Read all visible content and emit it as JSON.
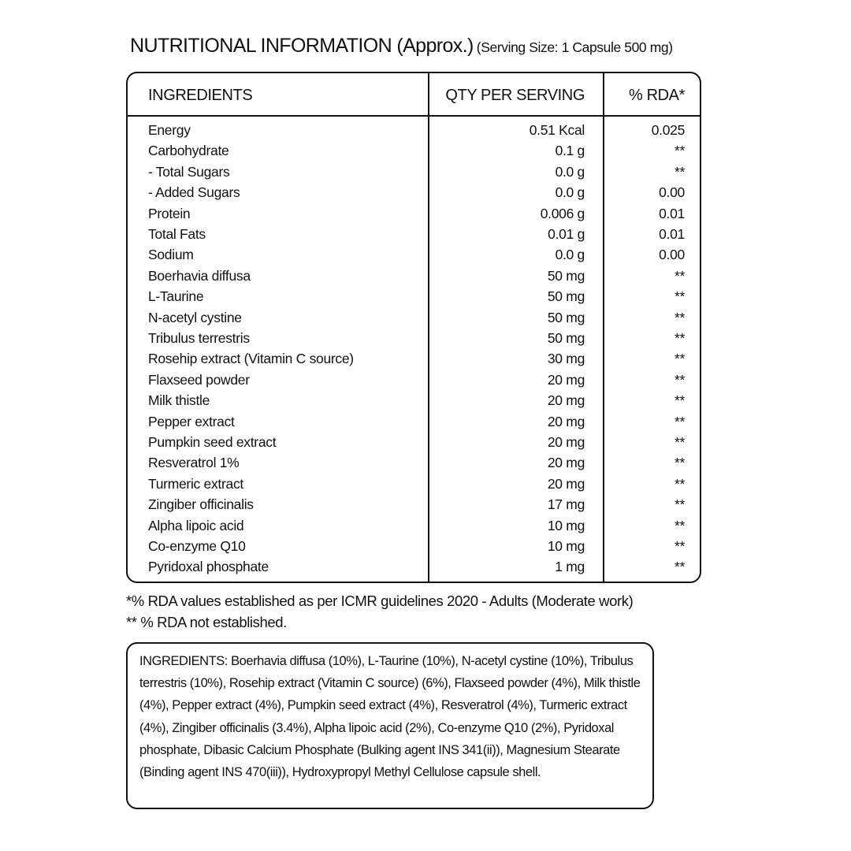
{
  "title": {
    "main": "NUTRITIONAL INFORMATION (Approx.)",
    "sub": "(Serving Size: 1 Capsule 500 mg)"
  },
  "table": {
    "headers": [
      "INGREDIENTS",
      "QTY PER SERVING",
      "% RDA*"
    ],
    "rows": [
      [
        "Energy",
        "0.51 Kcal",
        "0.025"
      ],
      [
        "Carbohydrate",
        "0.1 g",
        "**"
      ],
      [
        "- Total Sugars",
        "0.0 g",
        "**"
      ],
      [
        "- Added Sugars",
        "0.0 g",
        "0.00"
      ],
      [
        "Protein",
        "0.006 g",
        "0.01"
      ],
      [
        "Total Fats",
        "0.01 g",
        "0.01"
      ],
      [
        "Sodium",
        "0.0 g",
        "0.00"
      ],
      [
        "Boerhavia diffusa",
        "50 mg",
        "**"
      ],
      [
        "L-Taurine",
        "50 mg",
        "**"
      ],
      [
        "N-acetyl cystine",
        "50 mg",
        "**"
      ],
      [
        "Tribulus terrestris",
        "50 mg",
        "**"
      ],
      [
        "Rosehip extract (Vitamin C source)",
        "30 mg",
        "**"
      ],
      [
        "Flaxseed powder",
        "20 mg",
        "**"
      ],
      [
        "Milk thistle",
        "20 mg",
        "**"
      ],
      [
        "Pepper extract",
        "20 mg",
        "**"
      ],
      [
        "Pumpkin seed extract",
        "20 mg",
        "**"
      ],
      [
        "Resveratrol 1%",
        "20 mg",
        "**"
      ],
      [
        "Turmeric extract",
        "20 mg",
        "**"
      ],
      [
        "Zingiber officinalis",
        "17 mg",
        "**"
      ],
      [
        "Alpha lipoic acid",
        "10 mg",
        "**"
      ],
      [
        "Co-enzyme Q10",
        "10 mg",
        "**"
      ],
      [
        "Pyridoxal phosphate",
        "1 mg",
        "**"
      ]
    ]
  },
  "footnotes": [
    "*% RDA values established as per ICMR guidelines 2020 - Adults (Moderate work)",
    "** % RDA not established."
  ],
  "ingredients_text": "INGREDIENTS: Boerhavia diffusa (10%), L-Taurine (10%), N-acetyl cystine (10%), Tribulus terrestris (10%), Rosehip extract (Vitamin C source) (6%), Flaxseed powder (4%), Milk thistle (4%), Pepper extract (4%), Pumpkin seed extract (4%), Resveratrol (4%), Turmeric extract (4%), Zingiber officinalis (3.4%), Alpha lipoic acid (2%), Co-enzyme Q10 (2%), Pyridoxal phosphate, Dibasic Calcium Phosphate (Bulking agent INS 341(ii)), Magnesium Stearate (Binding agent INS 470(iii)), Hydroxypropyl Methyl Cellulose capsule shell."
}
